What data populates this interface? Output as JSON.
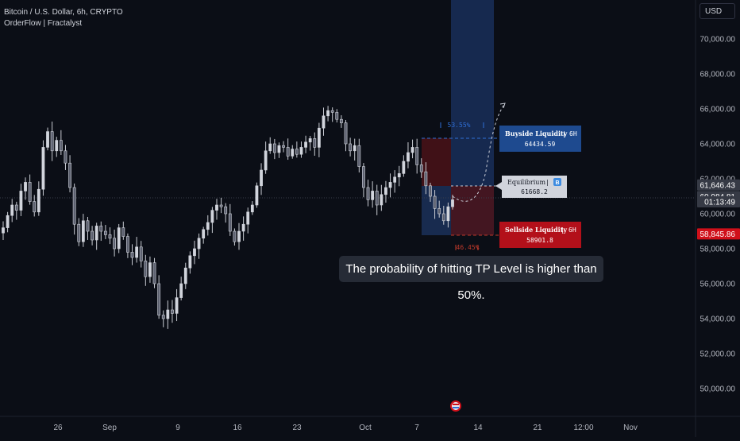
{
  "header": {
    "symbol_line": "Bitcoin / U.S. Dollar, 6h, CRYPTO",
    "indicator_line": "OrderFlow | Fractalyst",
    "currency_button": "USD"
  },
  "tooltip": "The probability of hitting TP Level is higher than 50%.",
  "labels": {
    "buyside": {
      "title": "Buyside Liquidity",
      "tf": "6H",
      "value": "64434.59"
    },
    "equilibrium": {
      "title": "Equilibrium",
      "badge": "B",
      "value": "61668.2"
    },
    "sellside": {
      "title": "Sellside Liquidity",
      "tf": "6H",
      "value": "58901.8"
    },
    "up_pct": "53.55%",
    "down_pct": "46.45%"
  },
  "price_tags": [
    {
      "text": "61,646.43",
      "color": "#363a45",
      "price": 61646.43
    },
    {
      "text": "60,984.81",
      "color": "#363a45",
      "price": 60984.81
    },
    {
      "text": "01:13:49",
      "color": "#363a45",
      "price": 60680
    },
    {
      "text": "58,845.86",
      "color": "#d0101a",
      "price": 58845.86
    }
  ],
  "colors": {
    "background": "#0b0e16",
    "candle": "#d1d4dc",
    "buyside": "#1e4a8f",
    "sellside": "#8c0f14",
    "zone_blue": "#1a2f55",
    "zone_red": "#4a1218",
    "dashed_blue": "#2f6fd6",
    "dashed_red": "#c0392b"
  },
  "chart_data": {
    "type": "candlestick",
    "title": "Bitcoin / U.S. Dollar, 6h, CRYPTO",
    "y_ticks": [
      50000,
      52000,
      54000,
      56000,
      58000,
      60000,
      62000,
      64000,
      66000,
      68000,
      70000
    ],
    "y_tick_labels": [
      "50,000.00",
      "52,000.00",
      "54,000.00",
      "56,000.00",
      "58,000.00",
      "60,000.00",
      "62,000.00",
      "64,000.00",
      "66,000.00",
      "68,000.00",
      "70,000.00"
    ],
    "ylim": [
      48500,
      71200
    ],
    "x_ticks": [
      "26",
      "Sep",
      "9",
      "16",
      "23",
      "Oct",
      "7",
      "14",
      "21",
      "12:00",
      "Nov"
    ],
    "grid": false,
    "closes": [
      59200,
      59900,
      60500,
      60200,
      61300,
      61800,
      60700,
      60100,
      61400,
      63800,
      64700,
      63600,
      64200,
      63600,
      62900,
      61500,
      59400,
      58400,
      59600,
      59000,
      58500,
      59300,
      59000,
      58800,
      58600,
      58000,
      59200,
      58700,
      57800,
      57500,
      58100,
      57300,
      56400,
      57200,
      56000,
      54200,
      54000,
      54500,
      54300,
      55200,
      56000,
      56900,
      57600,
      58000,
      58600,
      59100,
      59500,
      60200,
      60500,
      60400,
      60000,
      59000,
      58400,
      59000,
      59400,
      60100,
      60500,
      61600,
      62500,
      63600,
      64000,
      63500,
      63900,
      63800,
      63300,
      63700,
      63400,
      63800,
      64100,
      64300,
      63800,
      64900,
      65600,
      65900,
      65800,
      65400,
      65200,
      64000,
      63600,
      63900,
      62700,
      61500,
      60800,
      61300,
      60500,
      61100,
      61500,
      61800,
      62100,
      62300,
      63000,
      63500,
      63800,
      62800,
      62400,
      61600,
      61000,
      60300,
      60000,
      59600,
      60400,
      60800
    ]
  }
}
